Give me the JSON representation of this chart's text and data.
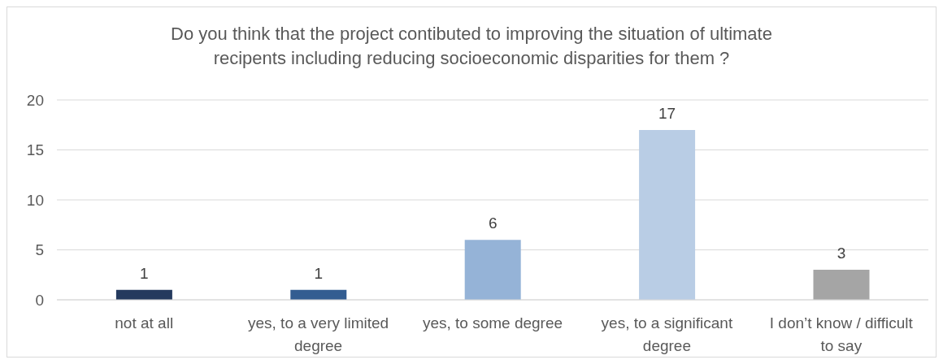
{
  "chart_data": {
    "type": "bar",
    "title": "Do you think that the project contibuted to improving the situation of ultimate recipents including reducing socioeconomic disparities for them ?",
    "categories": [
      "not at all",
      "yes, to a very limited degree",
      "yes, to some degree",
      "yes, to a significant degree",
      "I don’t know / difficult to say"
    ],
    "values": [
      1,
      1,
      6,
      17,
      3
    ],
    "colors": [
      "#243a5e",
      "#335d91",
      "#95b3d7",
      "#b9cde5",
      "#a5a5a5"
    ],
    "ylim": [
      0,
      20
    ],
    "yticks": [
      0,
      5,
      10,
      15,
      20
    ],
    "grid": "y",
    "data_labels": true
  }
}
